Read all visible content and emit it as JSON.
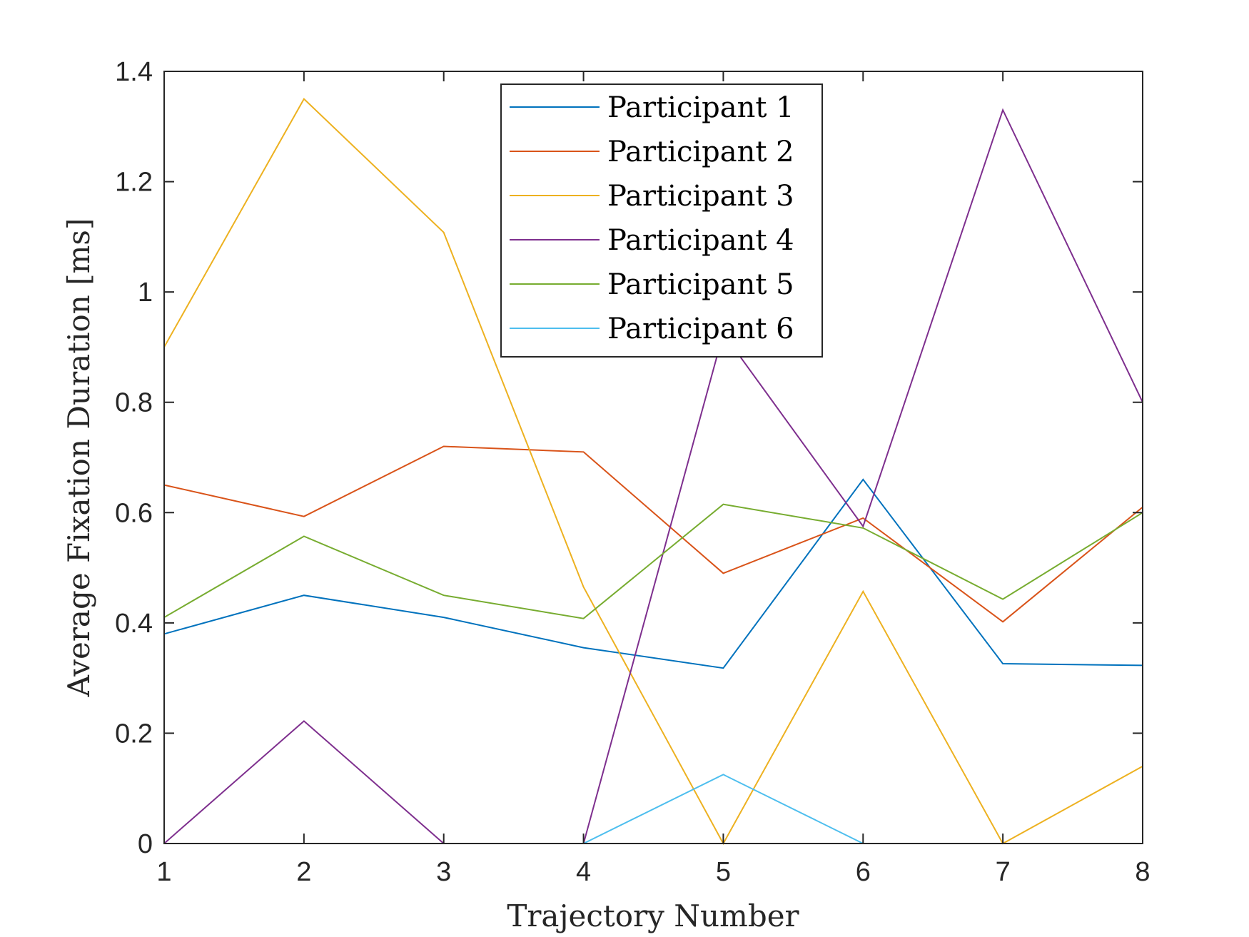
{
  "chart_data": {
    "type": "line",
    "title": "",
    "xlabel": "Trajectory Number",
    "ylabel": "Average Fixation Duration [ms]",
    "xlim": [
      1,
      8
    ],
    "ylim": [
      0,
      1.4
    ],
    "xticks": [
      1,
      2,
      3,
      4,
      5,
      6,
      7,
      8
    ],
    "yticks": [
      0,
      0.2,
      0.4,
      0.6,
      0.8,
      1,
      1.2,
      1.4
    ],
    "ytick_labels": [
      "0",
      "0.2",
      "0.4",
      "0.6",
      "0.8",
      "1",
      "1.2",
      "1.4"
    ],
    "grid": false,
    "legend_position": "top-center",
    "x": [
      1,
      2,
      3,
      4,
      5,
      6,
      7,
      8
    ],
    "series": [
      {
        "name": "Participant 1",
        "color": "#0072BD",
        "values": [
          0.38,
          0.45,
          0.41,
          0.355,
          0.318,
          0.66,
          0.326,
          0.323
        ]
      },
      {
        "name": "Participant 2",
        "color": "#D95319",
        "values": [
          0.65,
          0.593,
          0.72,
          0.71,
          0.49,
          0.59,
          0.402,
          0.61
        ]
      },
      {
        "name": "Participant 3",
        "color": "#EDB120",
        "values": [
          0.9,
          1.35,
          1.108,
          0.465,
          0.0,
          0.457,
          0.0,
          0.14
        ]
      },
      {
        "name": "Participant 4",
        "color": "#7E2F8E",
        "values": [
          0.0,
          0.222,
          0.0,
          0.0,
          0.925,
          0.575,
          1.33,
          0.8
        ]
      },
      {
        "name": "Participant 5",
        "color": "#77AC30",
        "values": [
          0.41,
          0.557,
          0.45,
          0.408,
          0.615,
          0.572,
          0.443,
          0.6
        ]
      },
      {
        "name": "Participant 6",
        "color": "#4DBEEE",
        "values": [
          0.0,
          0.0,
          0.0,
          0.0,
          0.125,
          0.0,
          0.0,
          0.0
        ]
      }
    ]
  }
}
